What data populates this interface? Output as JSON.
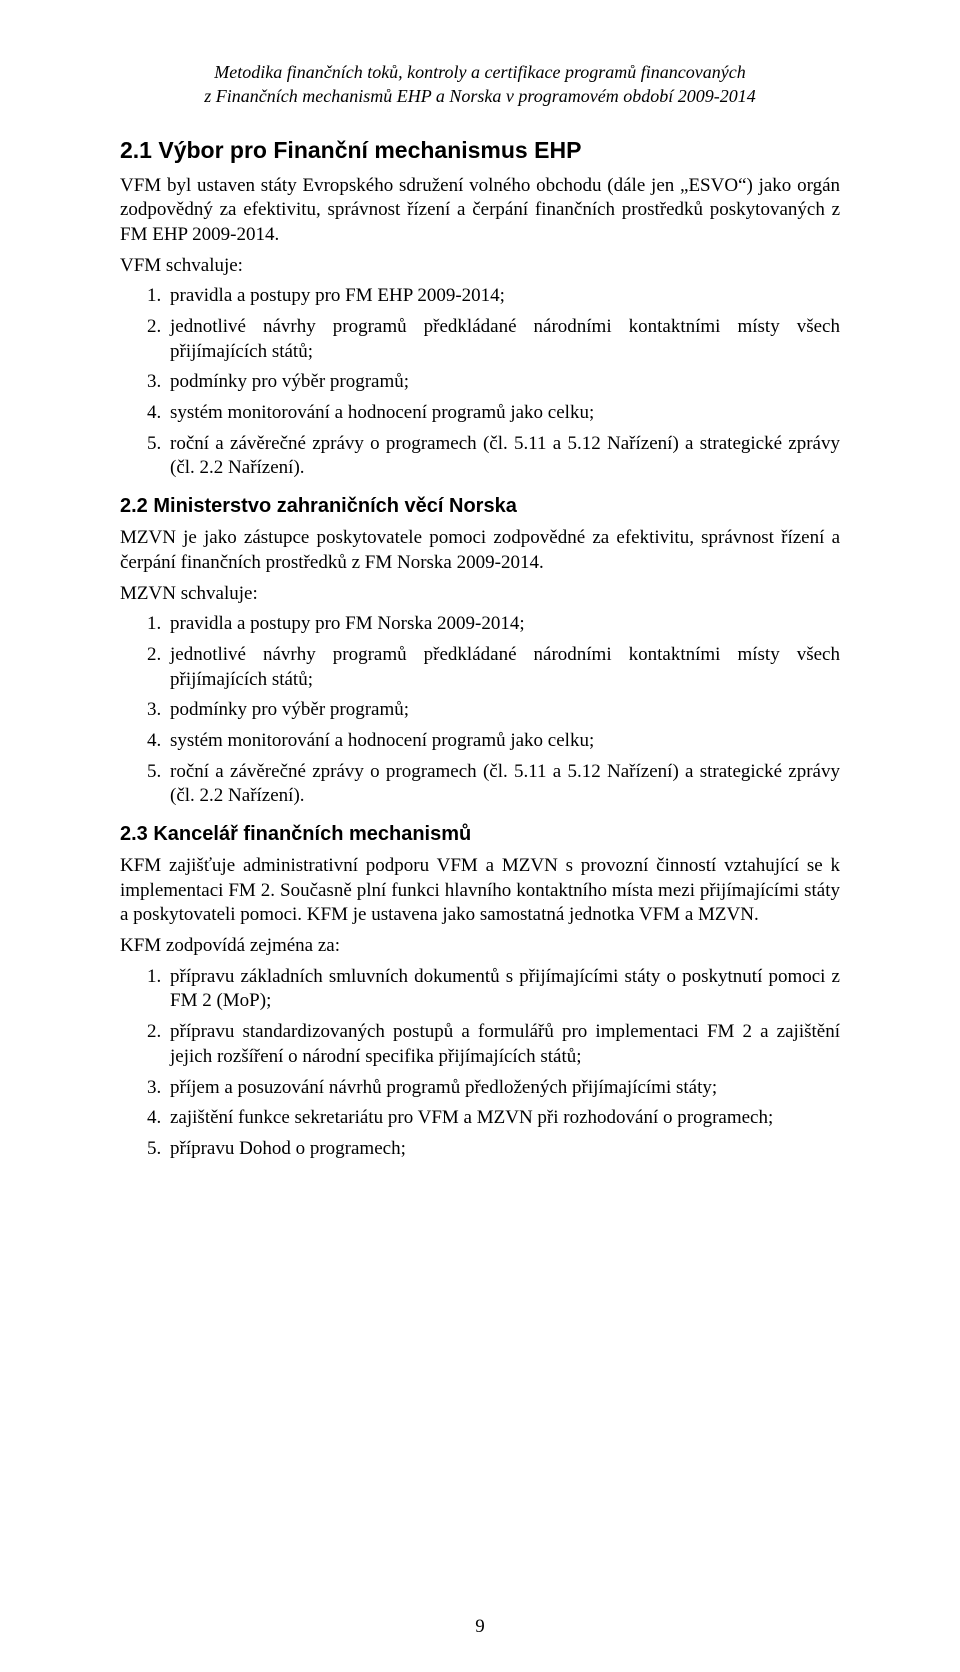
{
  "header": {
    "line1": "Metodika finančních toků, kontroly a certifikace programů financovaných",
    "line2": "z Finančních mechanismů EHP a Norska v programovém období 2009-2014"
  },
  "sections": {
    "s21": {
      "heading": "2.1 Výbor pro Finanční mechanismus EHP",
      "intro": "VFM byl ustaven státy Evropského sdružení volného obchodu (dále jen „ESVO“) jako orgán zodpovědný za efektivitu, správnost řízení a čerpání finančních prostředků poskytovaných z FM EHP 2009-2014.",
      "approves": "VFM schvaluje:",
      "items": {
        "i1": "pravidla a postupy pro FM EHP 2009-2014;",
        "i2": "jednotlivé návrhy programů předkládané národními kontaktními místy všech přijímajících států;",
        "i3": "podmínky pro výběr programů;",
        "i4": "systém monitorování a hodnocení programů jako celku;",
        "i5": "roční a závěrečné zprávy o programech (čl. 5.11 a 5.12 Nařízení) a strategické zprávy (čl. 2.2 Nařízení)."
      }
    },
    "s22": {
      "heading": "2.2 Ministerstvo zahraničních věcí Norska",
      "intro": "MZVN je jako zástupce poskytovatele pomoci zodpovědné za efektivitu, správnost řízení a čerpání finančních prostředků z FM Norska 2009-2014.",
      "approves": "MZVN schvaluje:",
      "items": {
        "i1": "pravidla a postupy pro FM Norska 2009-2014;",
        "i2": "jednotlivé návrhy programů předkládané národními kontaktními místy všech přijímajících států;",
        "i3": "podmínky pro výběr programů;",
        "i4": "systém monitorování a hodnocení programů jako celku;",
        "i5": "roční a závěrečné zprávy o programech (čl. 5.11 a 5.12 Nařízení) a strategické zprávy (čl. 2.2 Nařízení)."
      }
    },
    "s23": {
      "heading": "2.3 Kancelář finančních mechanismů",
      "intro": "KFM zajišťuje administrativní podporu VFM a MZVN s provozní činností vztahující se k implementaci FM 2. Současně plní funkci hlavního kontaktního místa mezi přijímajícími státy a poskytovateli pomoci. KFM je ustavena jako samostatná jednotka VFM a MZVN.",
      "responsible": "KFM zodpovídá zejména za:",
      "items": {
        "i1": "přípravu základních smluvních dokumentů s přijímajícími státy o poskytnutí pomoci z FM 2 (MoP);",
        "i2": "přípravu standardizovaných postupů a formulářů pro implementaci FM 2 a zajištění jejich rozšíření o národní specifika přijímajících států;",
        "i3": "příjem a posuzování návrhů programů předložených přijímajícími státy;",
        "i4": "zajištění funkce sekretariátu pro VFM a MZVN při rozhodování o programech;",
        "i5": "přípravu Dohod o programech;"
      }
    }
  },
  "page_number": "9"
}
